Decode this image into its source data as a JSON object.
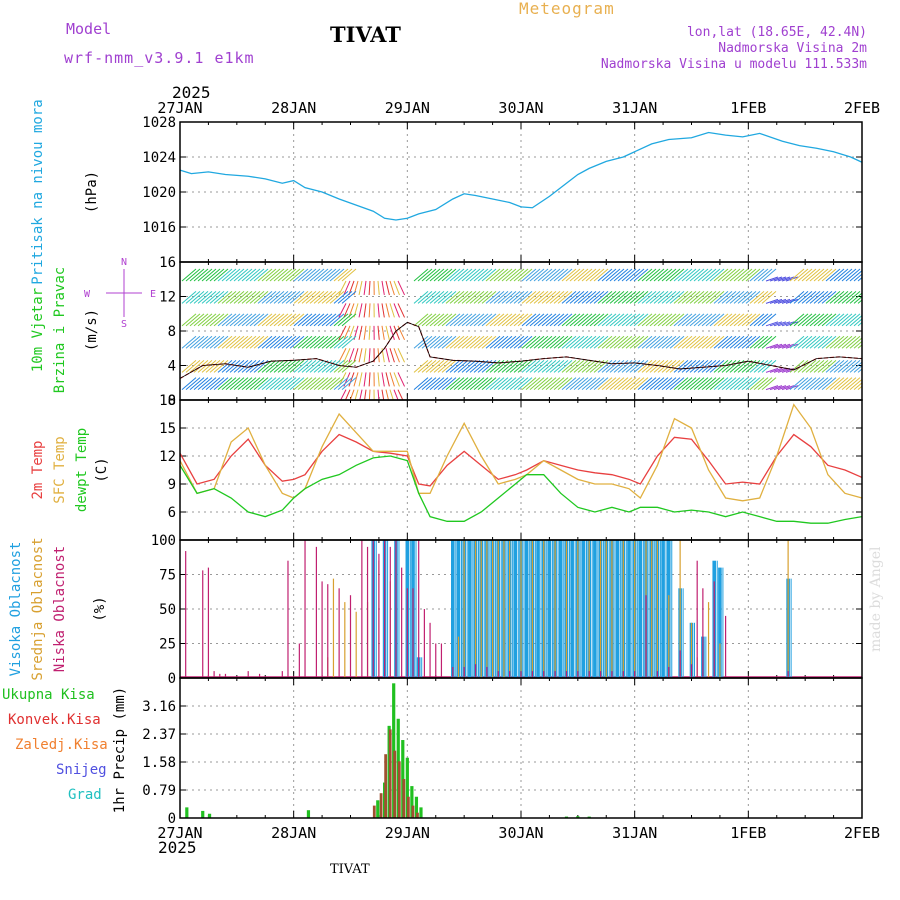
{
  "header": {
    "model_label": "Model",
    "model_name": "wrf-nmm_v3.9.1 e1km",
    "station_title": "TIVAT",
    "meteogram_label": "Meteogram",
    "lonlat": "lon,lat (18.65E, 42.4N)",
    "elevation": "Nadmorska Visina 2m",
    "model_elevation": "Nadmorska Visina u modelu 111.533m",
    "year_top": "2025",
    "year_bottom": "2025",
    "footer_station": "TIVAT",
    "made_by": "made by Angel"
  },
  "colors": {
    "pressure": "#20a8e0",
    "temp2m": "#e84040",
    "sfc": "#e0b040",
    "dewpt": "#20c820",
    "high_cloud": "#20a0e0",
    "mid_cloud": "#d8a030",
    "low_cloud": "#c02070",
    "total_precip": "#20c020",
    "conv_precip": "#e03030",
    "frz_precip": "#f08030",
    "snow": "#5050e0",
    "hail": "#20c0c0",
    "compass": "#b040d0",
    "wind_speed": "#e03030"
  },
  "chart_data": [
    {
      "type": "line",
      "panel": "pressure",
      "ylabel_station": "Pritisak na nivou mora",
      "ylabel_unit": "(hPa)",
      "ylim": [
        1012,
        1028
      ],
      "yticks": [
        1016,
        1020,
        1024,
        1028
      ],
      "x_days": [
        0,
        0.1,
        0.25,
        0.4,
        0.6,
        0.75,
        0.9,
        1.0,
        1.1,
        1.25,
        1.4,
        1.55,
        1.7,
        1.8,
        1.9,
        2.0,
        2.1,
        2.25,
        2.4,
        2.5,
        2.6,
        2.75,
        2.9,
        3.0,
        3.1,
        3.25,
        3.4,
        3.5,
        3.6,
        3.75,
        3.9,
        4.0,
        4.15,
        4.3,
        4.5,
        4.65,
        4.8,
        4.95,
        5.1,
        5.3,
        5.45,
        5.6,
        5.75,
        5.9,
        6.0
      ],
      "values": [
        1022.5,
        1022.1,
        1022.3,
        1022.0,
        1021.8,
        1021.5,
        1021.0,
        1021.3,
        1020.5,
        1020.0,
        1019.2,
        1018.5,
        1017.8,
        1017.0,
        1016.8,
        1017.0,
        1017.5,
        1018.0,
        1019.2,
        1019.8,
        1019.6,
        1019.2,
        1018.8,
        1018.3,
        1018.2,
        1019.5,
        1021.0,
        1022.0,
        1022.7,
        1023.5,
        1024.0,
        1024.6,
        1025.5,
        1026.0,
        1026.2,
        1026.8,
        1026.5,
        1026.3,
        1026.7,
        1025.8,
        1025.3,
        1025.0,
        1024.6,
        1024.0,
        1023.4
      ],
      "series": [
        {
          "name": ""
        }
      ]
    },
    {
      "type": "line",
      "panel": "wind",
      "ylabel_line1": "10m Vjetar",
      "ylabel_line2": "Brzina i Pravac",
      "ylabel_unit": "(m/s)",
      "ylim": [
        0,
        16
      ],
      "yticks": [
        0,
        4,
        8,
        12,
        16
      ],
      "compass": {
        "n": "N",
        "s": "S",
        "e": "E",
        "w": "W"
      },
      "x_days": [
        0,
        0.2,
        0.4,
        0.6,
        0.8,
        1.0,
        1.2,
        1.4,
        1.55,
        1.7,
        1.8,
        1.9,
        2.0,
        2.1,
        2.2,
        2.4,
        2.6,
        2.8,
        3.0,
        3.2,
        3.4,
        3.6,
        3.8,
        4.0,
        4.2,
        4.4,
        4.6,
        4.8,
        5.0,
        5.2,
        5.4,
        5.6,
        5.8,
        6.0
      ],
      "values": [
        2.5,
        4.0,
        4.2,
        3.8,
        4.5,
        4.6,
        4.8,
        4.0,
        3.8,
        4.5,
        6.0,
        8.0,
        9.0,
        8.5,
        5.0,
        4.6,
        4.5,
        4.3,
        4.5,
        4.8,
        5.0,
        4.6,
        4.2,
        4.3,
        4.0,
        3.6,
        3.8,
        4.0,
        4.5,
        4.0,
        3.5,
        4.8,
        5.0,
        4.8
      ]
    },
    {
      "type": "line",
      "panel": "temperature",
      "ylabel_line1": "2m Temp",
      "ylabel_line2": "SFC Temp",
      "ylabel_line3": "dewpt Temp",
      "ylabel_unit": "(C)",
      "ylim": [
        3,
        18
      ],
      "yticks": [
        6,
        9,
        12,
        15,
        18
      ],
      "x_days": [
        0,
        0.15,
        0.3,
        0.45,
        0.6,
        0.75,
        0.9,
        1.0,
        1.1,
        1.25,
        1.4,
        1.55,
        1.7,
        1.85,
        2.0,
        2.1,
        2.2,
        2.35,
        2.5,
        2.65,
        2.8,
        2.95,
        3.05,
        3.2,
        3.35,
        3.5,
        3.65,
        3.8,
        3.95,
        4.05,
        4.2,
        4.35,
        4.5,
        4.65,
        4.8,
        4.95,
        5.1,
        5.25,
        5.4,
        5.55,
        5.7,
        5.85,
        6.0
      ],
      "series": [
        {
          "name": "2m Temp",
          "values": [
            12.3,
            9.0,
            9.5,
            12.0,
            13.8,
            11.0,
            9.3,
            9.5,
            10.0,
            12.5,
            14.3,
            13.5,
            12.5,
            12.3,
            12.0,
            9.0,
            8.8,
            11.0,
            12.5,
            11.0,
            9.5,
            10.0,
            10.5,
            11.5,
            11.0,
            10.5,
            10.2,
            10.0,
            9.5,
            9.0,
            12.0,
            14.0,
            13.8,
            11.5,
            9.0,
            9.2,
            9.0,
            12.0,
            14.3,
            13.0,
            11.0,
            10.5,
            9.7
          ]
        },
        {
          "name": "SFC Temp",
          "values": [
            11.5,
            8.0,
            8.5,
            13.5,
            15.0,
            11.0,
            8.0,
            7.5,
            8.5,
            13.0,
            16.5,
            14.5,
            12.5,
            12.5,
            12.5,
            8.0,
            8.0,
            12.0,
            15.5,
            12.0,
            9.0,
            9.5,
            10.0,
            11.5,
            10.5,
            9.5,
            9.0,
            9.0,
            8.5,
            7.5,
            11.0,
            16.0,
            15.0,
            10.5,
            7.5,
            7.2,
            7.5,
            12.0,
            17.5,
            15.0,
            10.0,
            8.0,
            7.5
          ]
        },
        {
          "name": "dewpt Temp",
          "values": [
            11.0,
            8.0,
            8.5,
            7.5,
            6.0,
            5.5,
            6.2,
            7.5,
            8.5,
            9.5,
            10.0,
            11.0,
            11.8,
            12.0,
            11.5,
            8.0,
            5.5,
            5.0,
            5.0,
            6.0,
            7.5,
            9.0,
            10.0,
            10.0,
            8.0,
            6.5,
            6.0,
            6.5,
            6.0,
            6.5,
            6.5,
            6.0,
            6.2,
            6.0,
            5.5,
            6.0,
            5.5,
            5.0,
            5.0,
            4.8,
            4.8,
            5.2,
            5.5
          ]
        }
      ]
    },
    {
      "type": "bar",
      "panel": "clouds",
      "ylabel_line1": "Visoka Oblacnost",
      "ylabel_line2": "Srednja Oblacnost",
      "ylabel_line3": "Niska Oblacnost",
      "ylabel_unit": "(%)",
      "ylim": [
        0,
        100
      ],
      "yticks": [
        0,
        25,
        50,
        75,
        100
      ],
      "series": [
        {
          "name": "Visoka Oblacnost",
          "x_days": [
            1.3,
            1.35,
            1.45,
            1.55,
            1.65,
            1.75,
            1.85,
            2.45,
            2.5,
            2.6,
            2.65,
            2.7,
            2.75,
            2.8,
            2.85,
            2.9,
            3.0,
            3.1,
            3.2,
            3.3,
            3.4,
            3.5,
            3.6,
            3.7,
            3.75,
            3.8,
            3.9,
            4.0,
            4.1,
            4.15,
            4.2,
            4.3,
            4.4,
            4.5,
            4.55,
            4.65,
            4.75,
            5.35
          ],
          "values": [
            15,
            72,
            55,
            48,
            55,
            85,
            70,
            30,
            100,
            100,
            100,
            100,
            100,
            100,
            100,
            100,
            100,
            100,
            100,
            100,
            100,
            100,
            100,
            100,
            100,
            100,
            100,
            100,
            100,
            100,
            100,
            60,
            100,
            40,
            15,
            55,
            25,
            100
          ]
        },
        {
          "name": "Srednja Oblacnost",
          "x_days": [
            1.7,
            1.8,
            1.9,
            2.0,
            2.05,
            2.1,
            2.4,
            2.45,
            2.5,
            2.55,
            2.6,
            2.65,
            2.7,
            2.75,
            2.8,
            2.85,
            2.9,
            2.95,
            3.0,
            3.05,
            3.1,
            3.15,
            3.2,
            3.25,
            3.3,
            3.35,
            3.4,
            3.45,
            3.5,
            3.55,
            3.6,
            3.65,
            3.7,
            3.75,
            3.8,
            3.85,
            3.9,
            3.95,
            4.0,
            4.05,
            4.1,
            4.15,
            4.2,
            4.25,
            4.3,
            4.4,
            4.5,
            4.6,
            4.7,
            4.75,
            5.35
          ],
          "values": [
            100,
            100,
            100,
            100,
            100,
            15,
            100,
            100,
            100,
            100,
            100,
            100,
            100,
            100,
            100,
            100,
            100,
            100,
            100,
            100,
            100,
            100,
            100,
            100,
            100,
            100,
            100,
            100,
            100,
            100,
            100,
            100,
            100,
            100,
            100,
            100,
            100,
            100,
            100,
            100,
            100,
            100,
            100,
            100,
            100,
            65,
            40,
            30,
            85,
            80,
            72
          ]
        },
        {
          "name": "Niska Oblacnost",
          "x_days": [
            0.05,
            0.2,
            0.25,
            0.3,
            0.35,
            0.4,
            0.6,
            0.7,
            0.9,
            0.95,
            1.05,
            1.1,
            1.2,
            1.25,
            1.3,
            1.4,
            1.5,
            1.6,
            1.65,
            1.7,
            1.75,
            1.8,
            1.85,
            1.9,
            1.95,
            2.0,
            2.05,
            2.1,
            2.15,
            2.2,
            2.25,
            2.3,
            2.4,
            2.5,
            2.6,
            2.7,
            2.8,
            2.9,
            3.0,
            3.1,
            3.2,
            3.3,
            3.4,
            3.5,
            3.6,
            3.7,
            3.8,
            3.9,
            4.0,
            4.1,
            4.2,
            4.3,
            4.4,
            4.5,
            4.55,
            4.6,
            4.7,
            4.8,
            5.35
          ],
          "values": [
            92,
            78,
            80,
            5,
            3,
            3,
            5,
            3,
            5,
            85,
            25,
            100,
            95,
            70,
            68,
            65,
            60,
            100,
            95,
            100,
            90,
            100,
            95,
            100,
            80,
            65,
            65,
            100,
            50,
            40,
            25,
            25,
            8,
            8,
            10,
            8,
            5,
            5,
            5,
            5,
            5,
            5,
            5,
            5,
            5,
            5,
            5,
            5,
            5,
            60,
            5,
            8,
            20,
            10,
            85,
            65,
            70,
            45,
            5
          ]
        }
      ]
    },
    {
      "type": "bar",
      "panel": "precipitation",
      "ylabel_unit": "1hr Precip (mm)",
      "ylim": [
        0,
        3.95
      ],
      "yticks": [
        0,
        0.79,
        1.58,
        2.37,
        3.16
      ],
      "legend": [
        "Ukupna Kisa",
        "Konvek.Kisa",
        "Zaledj.Kisa",
        "Snijeg",
        "Grad"
      ],
      "series": [
        {
          "name": "Ukupna Kisa",
          "x_days": [
            0.06,
            0.2,
            0.26,
            1.13,
            1.74,
            1.8,
            1.84,
            1.88,
            1.92,
            1.96,
            2.0,
            2.04,
            2.08,
            2.12,
            3.4,
            3.5,
            3.6
          ],
          "values": [
            0.3,
            0.2,
            0.12,
            0.22,
            0.5,
            1.0,
            2.6,
            3.8,
            2.8,
            2.2,
            1.7,
            0.9,
            0.6,
            0.3,
            0.04,
            0.05,
            0.04
          ]
        },
        {
          "name": "Konvek.Kisa",
          "x_days": [
            1.74,
            1.8,
            1.84,
            1.88,
            1.92,
            1.96,
            2.0,
            2.04,
            2.08,
            2.12
          ],
          "values": [
            0.35,
            0.7,
            1.8,
            2.5,
            1.9,
            1.6,
            1.1,
            0.6,
            0.35,
            0.15
          ]
        }
      ]
    }
  ],
  "x_axis": {
    "top_labels": [
      "27JAN",
      "28JAN",
      "29JAN",
      "30JAN",
      "31JAN",
      "1FEB",
      "2FEB"
    ],
    "bottom_labels": [
      "27JAN",
      "28JAN",
      "29JAN",
      "30JAN",
      "31JAN",
      "1FEB",
      "2FEB"
    ]
  }
}
